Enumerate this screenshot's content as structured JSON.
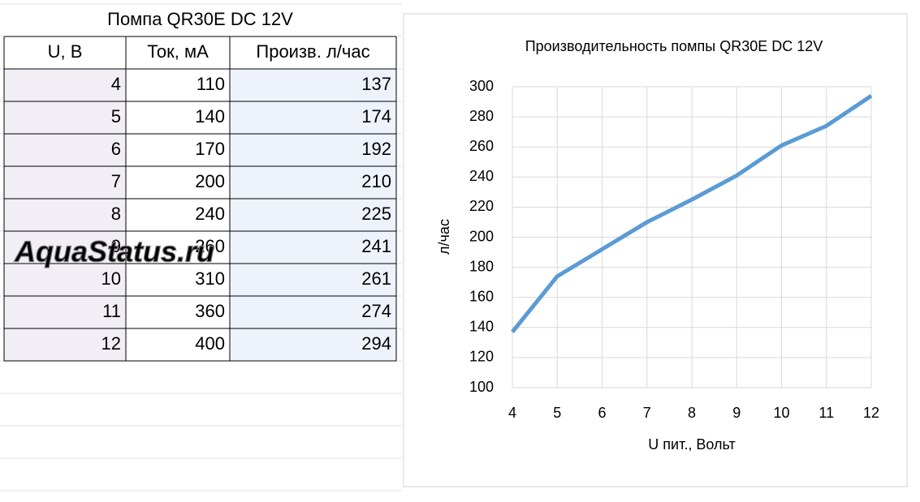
{
  "table": {
    "title": "Помпа QR30E DC 12V",
    "columns": [
      "U, B",
      "Ток, мА",
      "Произв. л/час"
    ],
    "rows": [
      [
        4,
        110,
        137
      ],
      [
        5,
        140,
        174
      ],
      [
        6,
        170,
        192
      ],
      [
        7,
        200,
        210
      ],
      [
        8,
        240,
        225
      ],
      [
        9,
        260,
        241
      ],
      [
        10,
        310,
        261
      ],
      [
        11,
        360,
        274
      ],
      [
        12,
        400,
        294
      ]
    ]
  },
  "watermark": "AquaStatus.ru",
  "chart_data": {
    "type": "line",
    "title": "Производительность помпы QR30E DC 12V",
    "x_label": "U пит., Вольт",
    "y_label": "л/час",
    "x": [
      4,
      5,
      6,
      7,
      8,
      9,
      10,
      11,
      12
    ],
    "values": [
      137,
      174,
      192,
      210,
      225,
      241,
      261,
      274,
      294
    ],
    "color": "#5b9bd5",
    "xlim": [
      4,
      12
    ],
    "xticks": [
      4,
      5,
      6,
      7,
      8,
      9,
      10,
      11,
      12
    ],
    "ylim": [
      100,
      300
    ],
    "yticks": [
      100,
      120,
      140,
      160,
      180,
      200,
      220,
      240,
      260,
      280,
      300
    ],
    "grid": true
  }
}
